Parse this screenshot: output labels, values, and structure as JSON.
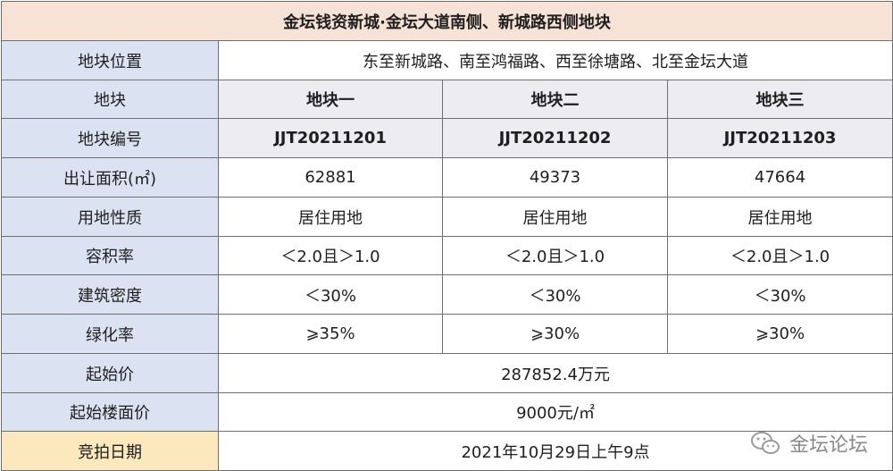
{
  "title": "金坛钱资新城·金坛大道南侧、新城路西侧地块",
  "location": {
    "label": "地块位置",
    "value": "东至新城路、南至鸿福路、西至徐塘路、北至金坛大道"
  },
  "plots": {
    "label": "地块",
    "values": [
      "地块一",
      "地块二",
      "地块三"
    ]
  },
  "codes": {
    "label": "地块编号",
    "values": [
      "JJT20211201",
      "JJT20211202",
      "JJT20211203"
    ]
  },
  "area": {
    "label": "出让面积(㎡)",
    "values": [
      "62881",
      "49373",
      "47664"
    ]
  },
  "usage": {
    "label": "用地性质",
    "values": [
      "居住用地",
      "居住用地",
      "居住用地"
    ]
  },
  "far": {
    "label": "容积率",
    "values": [
      "＜2.0且＞1.0",
      "＜2.0且＞1.0",
      "＜2.0且＞1.0"
    ]
  },
  "density": {
    "label": "建筑密度",
    "values": [
      "＜30%",
      "＜30%",
      "＜30%"
    ]
  },
  "green": {
    "label": "绿化率",
    "values": [
      "⩾35%",
      "⩾30%",
      "⩾30%"
    ]
  },
  "start_price": {
    "label": "起始价",
    "value": "287852.4万元"
  },
  "floor_price": {
    "label": "起始楼面价",
    "value": "9000元/㎡"
  },
  "auction_date": {
    "label": "竞拍日期",
    "value": "2021年10月29日上午9点"
  },
  "watermark": {
    "text": "金坛论坛",
    "icon": "wechat-icon"
  },
  "colors": {
    "title_bg": "#f7e2d6",
    "label_bg": "#dbe3f2",
    "date_label_bg": "#fbe8bd",
    "highlight": "#d42020"
  }
}
